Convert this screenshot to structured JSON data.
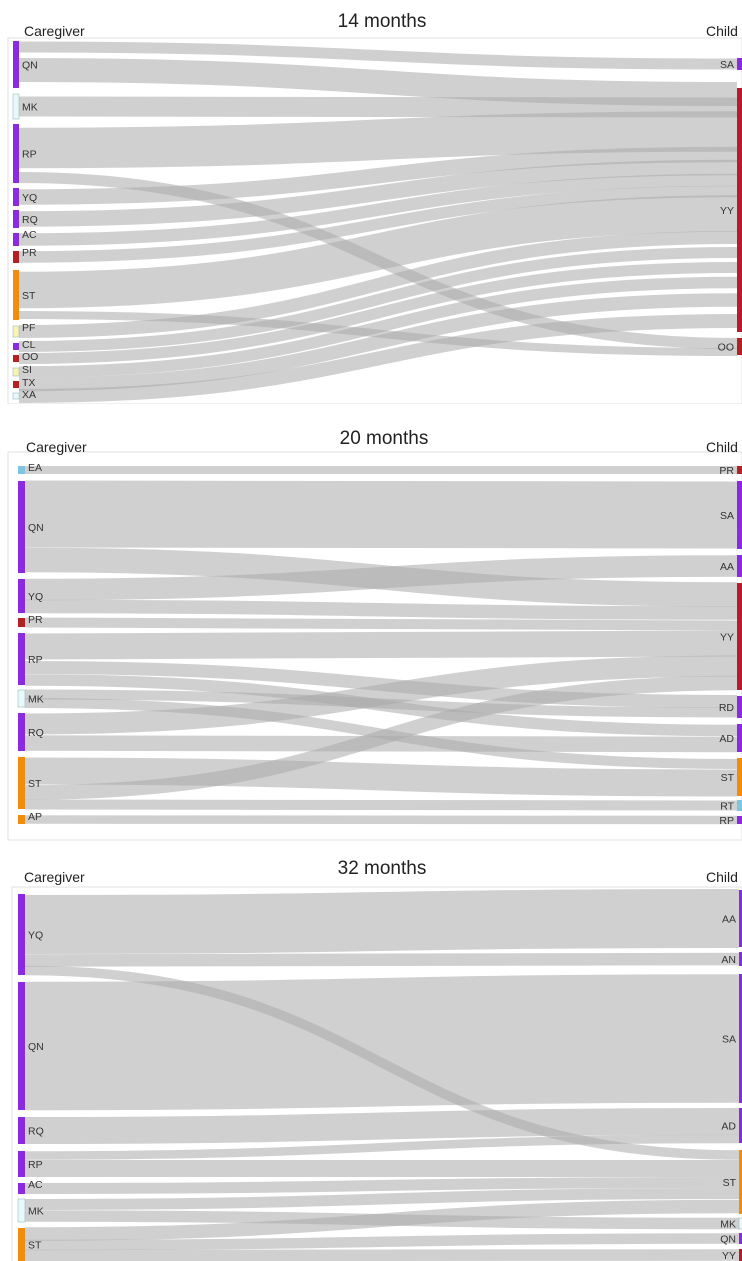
{
  "colors": {
    "purple": "#8a2be2",
    "crimson": "#b22222",
    "darkred": "#b81c2c",
    "orange": "#f28c0f",
    "lightblue": "#7fc4e0",
    "paleyellow": "#fbf3b0",
    "palecyan": "#e8f8fb",
    "flow": "#a9a9a9"
  },
  "panels": [
    {
      "title": "14 months",
      "left_header": "Caregiver",
      "right_header": "Child",
      "left_nodes": [
        {
          "label": "QN",
          "color": "purple"
        },
        {
          "label": "MK",
          "color": "palecyan"
        },
        {
          "label": "RP",
          "color": "purple"
        },
        {
          "label": "YQ",
          "color": "purple"
        },
        {
          "label": "RQ",
          "color": "purple"
        },
        {
          "label": "AC",
          "color": "purple"
        },
        {
          "label": "PR",
          "color": "crimson"
        },
        {
          "label": "ST",
          "color": "orange"
        },
        {
          "label": "PF",
          "color": "paleyellow"
        },
        {
          "label": "CL",
          "color": "purple"
        },
        {
          "label": "OO",
          "color": "crimson"
        },
        {
          "label": "SI",
          "color": "paleyellow"
        },
        {
          "label": "TX",
          "color": "crimson"
        },
        {
          "label": "XA",
          "color": "palecyan"
        }
      ],
      "right_nodes": [
        {
          "label": "SA",
          "color": "purple"
        },
        {
          "label": "YY",
          "color": "darkred"
        },
        {
          "label": "OO",
          "color": "crimson"
        }
      ]
    },
    {
      "title": "20 months",
      "left_header": "Caregiver",
      "right_header": "Child",
      "left_nodes": [
        {
          "label": "EA",
          "color": "lightblue"
        },
        {
          "label": "QN",
          "color": "purple"
        },
        {
          "label": "YQ",
          "color": "purple"
        },
        {
          "label": "PR",
          "color": "crimson"
        },
        {
          "label": "RP",
          "color": "purple"
        },
        {
          "label": "MK",
          "color": "palecyan"
        },
        {
          "label": "RQ",
          "color": "purple"
        },
        {
          "label": "ST",
          "color": "orange"
        },
        {
          "label": "AP",
          "color": "orange"
        }
      ],
      "right_nodes": [
        {
          "label": "PR",
          "color": "crimson"
        },
        {
          "label": "SA",
          "color": "purple"
        },
        {
          "label": "AA",
          "color": "purple"
        },
        {
          "label": "YY",
          "color": "darkred"
        },
        {
          "label": "RD",
          "color": "purple"
        },
        {
          "label": "AD",
          "color": "purple"
        },
        {
          "label": "ST",
          "color": "orange"
        },
        {
          "label": "RT",
          "color": "lightblue"
        },
        {
          "label": "RP",
          "color": "purple"
        }
      ]
    },
    {
      "title": "32 months",
      "left_header": "Caregiver",
      "right_header": "Child",
      "left_nodes": [
        {
          "label": "YQ",
          "color": "purple"
        },
        {
          "label": "QN",
          "color": "purple"
        },
        {
          "label": "RQ",
          "color": "purple"
        },
        {
          "label": "RP",
          "color": "purple"
        },
        {
          "label": "AC",
          "color": "purple"
        },
        {
          "label": "MK",
          "color": "palecyan"
        },
        {
          "label": "ST",
          "color": "orange"
        }
      ],
      "right_nodes": [
        {
          "label": "AA",
          "color": "purple"
        },
        {
          "label": "AN",
          "color": "purple"
        },
        {
          "label": "SA",
          "color": "purple"
        },
        {
          "label": "AD",
          "color": "purple"
        },
        {
          "label": "ST",
          "color": "orange"
        },
        {
          "label": "MK",
          "color": "palecyan"
        },
        {
          "label": "QN",
          "color": "purple"
        },
        {
          "label": "YY",
          "color": "darkred"
        }
      ]
    }
  ]
}
